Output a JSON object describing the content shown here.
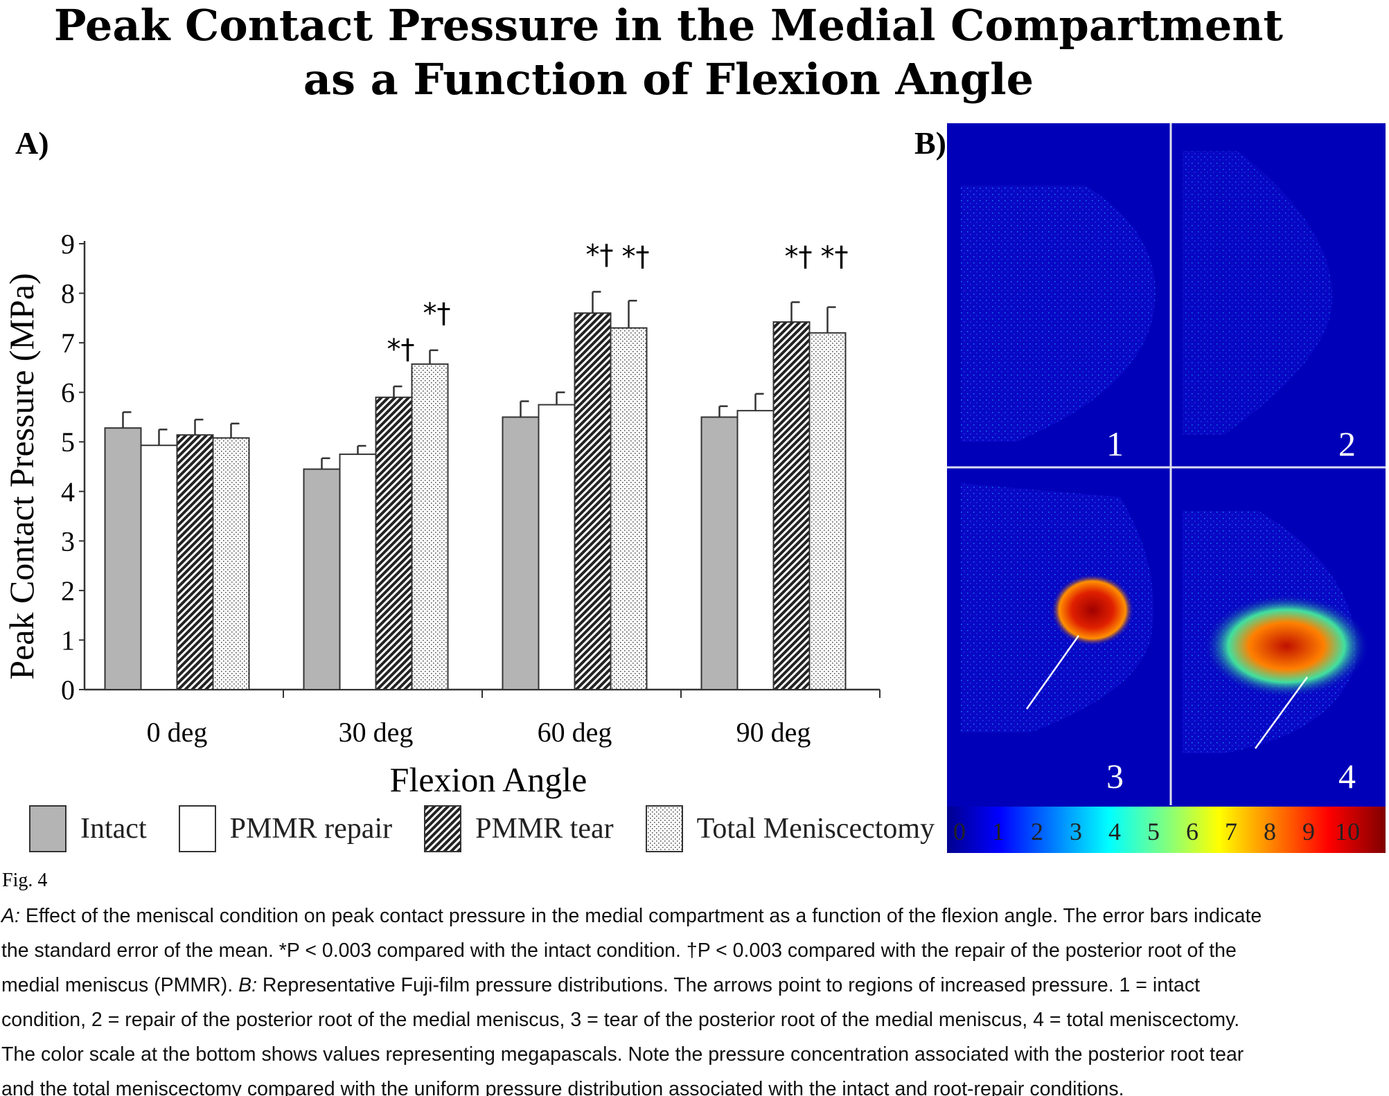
{
  "title_lines": [
    "Peak Contact Pressure in the Medial Compartment",
    "as a Function of Flexion Angle"
  ],
  "panel_a_label": "A)",
  "panel_b_label": "B)",
  "chart_data": {
    "type": "bar",
    "title": "Peak Contact Pressure in the Medial Compartment as a Function of Flexion Angle",
    "xlabel": "Flexion Angle",
    "ylabel": "Peak Contact Pressure (MPa)",
    "ylim": [
      0,
      9
    ],
    "yticks": [
      "0",
      "1",
      "2",
      "3",
      "4",
      "5",
      "6",
      "7",
      "8",
      "9"
    ],
    "categories": [
      "0 deg",
      "30 deg",
      "60 deg",
      "90 deg"
    ],
    "legend_position": "bottom",
    "grid": false,
    "series": [
      {
        "name": "Intact",
        "pattern": "solid-gray",
        "values": [
          5.28,
          4.45,
          5.5,
          5.5
        ],
        "error": [
          0.32,
          0.22,
          0.32,
          0.22
        ],
        "annotations": [
          "",
          "",
          "",
          ""
        ]
      },
      {
        "name": "PMMR repair",
        "pattern": "white",
        "values": [
          4.93,
          4.75,
          5.75,
          5.63
        ],
        "error": [
          0.32,
          0.17,
          0.25,
          0.34
        ],
        "annotations": [
          "",
          "",
          "",
          ""
        ]
      },
      {
        "name": "PMMR tear",
        "pattern": "diagonal-hatch",
        "values": [
          5.14,
          5.9,
          7.6,
          7.42
        ],
        "error": [
          0.31,
          0.22,
          0.43,
          0.4
        ],
        "annotations": [
          "",
          "*†",
          "*†",
          "*†"
        ]
      },
      {
        "name": "Total Meniscectomy",
        "pattern": "dotted",
        "values": [
          5.08,
          6.57,
          7.3,
          7.2
        ],
        "error": [
          0.29,
          0.28,
          0.55,
          0.52
        ],
        "annotations": [
          "",
          "*†",
          "*†",
          "*†"
        ]
      }
    ]
  },
  "panel_b": {
    "image_labels": [
      "1",
      "2",
      "3",
      "4"
    ],
    "colorbar_labels": [
      "0",
      "1",
      "2",
      "3",
      "4",
      "5",
      "6",
      "7",
      "8",
      "9",
      "10"
    ]
  },
  "figure_label": "Fig. 4",
  "caption": {
    "lines": [
      {
        "em": "A:",
        "text": " Effect of the meniscal condition on peak contact pressure in the medial compartment as a function of the flexion angle. The error bars indicate"
      },
      {
        "em": "",
        "text": "the standard error of the mean. *P < 0.003 compared with the intact condition. †P < 0.003 compared with the repair of the posterior root of the"
      },
      {
        "em": "",
        "text": "medial meniscus (PMMR). ",
        "em2": "B:",
        "text2": " Representative Fuji-film pressure distributions. The arrows point to regions of increased pressure. 1 = intact"
      },
      {
        "em": "",
        "text": "condition, 2 = repair of the posterior root of the medial meniscus, 3 = tear of the posterior root of the medial meniscus, 4 = total meniscectomy."
      },
      {
        "em": "",
        "text": "The color scale at the bottom shows values representing megapascals. Note the pressure concentration associated with the posterior root tear"
      },
      {
        "em": "",
        "text": "and the total meniscectomy compared with the uniform pressure distribution associated with the intact and root-repair conditions."
      }
    ]
  }
}
